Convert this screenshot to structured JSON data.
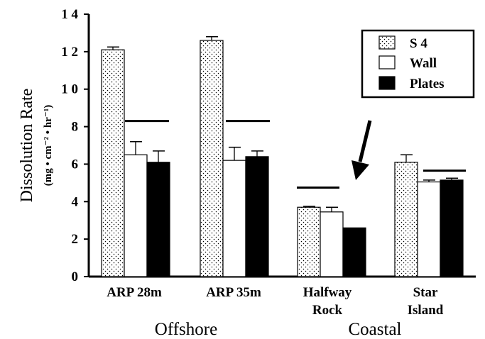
{
  "chart_data": {
    "type": "bar",
    "title": "",
    "ylabel": "Dissolution Rate",
    "ylabel_units": "(mg • cm⁻² • hr⁻¹)",
    "ylim": [
      0,
      14
    ],
    "yticks": [
      "0",
      "2",
      "4",
      "6",
      "8",
      "1 0",
      "1 2",
      "1 4"
    ],
    "categories": [
      {
        "lines": [
          "ARP  28m"
        ]
      },
      {
        "lines": [
          "ARP  35m"
        ]
      },
      {
        "lines": [
          "Halfway",
          "Rock"
        ]
      },
      {
        "lines": [
          "Star",
          "Island"
        ]
      }
    ],
    "groups": [
      {
        "label": "Offshore"
      },
      {
        "label": "Coastal"
      }
    ],
    "series": [
      {
        "name": "S 4",
        "pattern": "stipple",
        "values": [
          12.1,
          12.6,
          3.7,
          6.1
        ],
        "errors": [
          0.15,
          0.2,
          0.05,
          0.4
        ]
      },
      {
        "name": "Wall",
        "pattern": "white",
        "values": [
          6.5,
          6.2,
          3.45,
          5.05
        ],
        "errors": [
          0.7,
          0.7,
          0.25,
          0.1
        ]
      },
      {
        "name": "Plates",
        "pattern": "black",
        "values": [
          6.1,
          6.4,
          2.6,
          5.15
        ],
        "errors": [
          0.6,
          0.3,
          0.0,
          0.1
        ]
      }
    ],
    "significance_lines": [
      8.3,
      8.3,
      4.75,
      5.65
    ],
    "legend_position": "top-right",
    "annotation": "arrow pointing to Halfway Rock Plates",
    "grid": false
  }
}
